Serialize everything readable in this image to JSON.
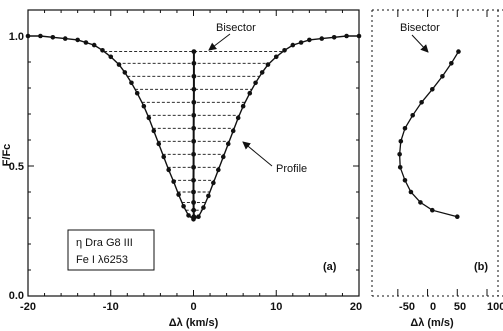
{
  "chart_data": [
    {
      "panel": "(a)",
      "type": "line",
      "xlabel": "Δλ (km/s)",
      "ylabel": "F/Fc",
      "xlim": [
        -20,
        20
      ],
      "ylim": [
        0,
        1.1
      ],
      "xticks": [
        "-20",
        "-10",
        "0",
        "10",
        "20"
      ],
      "yticks": [
        "0.0",
        "0.5",
        "1.0"
      ],
      "series": [
        {
          "name": "Profile",
          "x": [
            -20,
            -18.5,
            -17,
            -15.5,
            -14,
            -13,
            -12,
            -11,
            -10,
            -9,
            -8.3,
            -7.5,
            -6.8,
            -6,
            -5.4,
            -4.8,
            -4.2,
            -3.6,
            -3,
            -2.4,
            -1.8,
            -1.2,
            -0.6,
            0,
            0.6,
            1.2,
            1.8,
            2.4,
            3,
            3.6,
            4.2,
            4.8,
            5.4,
            6,
            6.8,
            7.5,
            8.3,
            9,
            10,
            11,
            12,
            13,
            14,
            15.5,
            17,
            18.5,
            20
          ],
          "y": [
            1.0,
            1.0,
            0.995,
            0.99,
            0.985,
            0.975,
            0.965,
            0.945,
            0.92,
            0.89,
            0.86,
            0.82,
            0.78,
            0.73,
            0.685,
            0.635,
            0.585,
            0.535,
            0.485,
            0.44,
            0.39,
            0.345,
            0.31,
            0.295,
            0.305,
            0.34,
            0.385,
            0.435,
            0.485,
            0.535,
            0.585,
            0.635,
            0.685,
            0.73,
            0.78,
            0.82,
            0.86,
            0.89,
            0.92,
            0.945,
            0.965,
            0.975,
            0.985,
            0.99,
            0.995,
            1.0,
            1.0
          ]
        },
        {
          "name": "Bisector",
          "x": [
            0.05,
            0.05,
            0.05,
            0.05,
            0.04,
            0.03,
            0.02,
            0.02,
            0.01,
            0.01,
            0.0,
            0.0,
            0.01,
            0.02,
            0.04
          ],
          "y": [
            0.94,
            0.895,
            0.845,
            0.795,
            0.745,
            0.695,
            0.645,
            0.595,
            0.545,
            0.495,
            0.445,
            0.4,
            0.36,
            0.33,
            0.305
          ]
        }
      ],
      "annotations": [
        "Bisector",
        "Profile"
      ],
      "info_box": [
        "η Dra  G8 III",
        "Fe I  λ6253"
      ]
    },
    {
      "panel": "(b)",
      "type": "line",
      "xlabel": "Δλ (m/s)",
      "xlim": [
        -80,
        100
      ],
      "ylim": [
        0,
        1.1
      ],
      "xticks": [
        "-50",
        "0",
        "50",
        "100"
      ],
      "series": [
        {
          "name": "Bisector",
          "x": [
            52,
            40,
            25,
            8,
            -10,
            -25,
            -38,
            -45,
            -47,
            -46,
            -38,
            -28,
            -12,
            8,
            50
          ],
          "y": [
            0.94,
            0.895,
            0.845,
            0.795,
            0.745,
            0.695,
            0.645,
            0.595,
            0.545,
            0.495,
            0.445,
            0.4,
            0.36,
            0.33,
            0.305
          ]
        }
      ],
      "annotations": [
        "Bisector"
      ]
    }
  ]
}
